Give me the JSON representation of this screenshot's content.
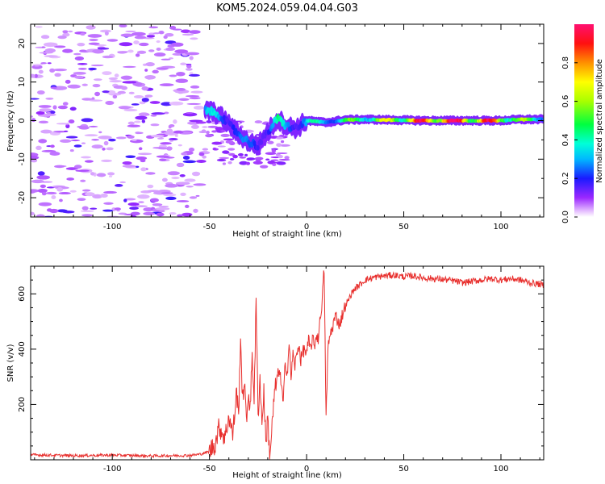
{
  "figure": {
    "title": "KOM5.2024.059.04.04.G03"
  },
  "chart_data": [
    {
      "type": "heatmap",
      "xlabel": "Height of straight line (km)",
      "ylabel": "Frequency (Hz)",
      "xlim": [
        -142,
        122
      ],
      "ylim": [
        -25,
        25
      ],
      "x_ticks": [
        -100,
        -50,
        0,
        50,
        100
      ],
      "y_ticks": [
        -20,
        -10,
        0,
        10,
        20
      ],
      "colorbar": {
        "label": "Normalized spectral amplitude",
        "range": [
          0,
          1
        ],
        "ticks": [
          "0.0",
          "0.2",
          "0.4",
          "0.6",
          "0.8"
        ],
        "colormap": "hsv-rainbow (white below threshold)"
      },
      "ridge": [
        {
          "x": -50,
          "f": 2.5,
          "amp": 0.3
        },
        {
          "x": -45,
          "f": 1.5,
          "amp": 0.35
        },
        {
          "x": -40,
          "f": -1.0,
          "amp": 0.28
        },
        {
          "x": -35,
          "f": -3.5,
          "amp": 0.25
        },
        {
          "x": -30,
          "f": -5.5,
          "amp": 0.22
        },
        {
          "x": -25,
          "f": -6.5,
          "amp": 0.25
        },
        {
          "x": -20,
          "f": -3.0,
          "amp": 0.25
        },
        {
          "x": -15,
          "f": 0.5,
          "amp": 0.4
        },
        {
          "x": -10,
          "f": -1.5,
          "amp": 0.3
        },
        {
          "x": -5,
          "f": -2.0,
          "amp": 0.25
        },
        {
          "x": 0,
          "f": 0.0,
          "amp": 0.4
        },
        {
          "x": 10,
          "f": -0.5,
          "amp": 0.35
        },
        {
          "x": 20,
          "f": 0.2,
          "amp": 0.45
        },
        {
          "x": 30,
          "f": 0.3,
          "amp": 0.55
        },
        {
          "x": 40,
          "f": 0.2,
          "amp": 0.6
        },
        {
          "x": 50,
          "f": 0.1,
          "amp": 0.75
        },
        {
          "x": 60,
          "f": 0.0,
          "amp": 0.85
        },
        {
          "x": 70,
          "f": 0.0,
          "amp": 0.95
        },
        {
          "x": 80,
          "f": 0.0,
          "amp": 0.9
        },
        {
          "x": 90,
          "f": 0.0,
          "amp": 0.85
        },
        {
          "x": 100,
          "f": 0.0,
          "amp": 0.8
        },
        {
          "x": 110,
          "f": 0.3,
          "amp": 0.55
        },
        {
          "x": 120,
          "f": 0.3,
          "amp": 0.45
        }
      ]
    },
    {
      "type": "line",
      "xlabel": "Height of straight line (km)",
      "ylabel": "SNR (v/v)",
      "xlim": [
        -142,
        122
      ],
      "ylim": [
        0,
        700
      ],
      "x_ticks": [
        -100,
        -50,
        0,
        50,
        100
      ],
      "y_ticks": [
        200,
        400,
        600
      ],
      "color": "#e8302e",
      "series": [
        {
          "points": [
            [
              -142,
              18
            ],
            [
              -120,
              15
            ],
            [
              -100,
              17
            ],
            [
              -80,
              14
            ],
            [
              -60,
              16
            ],
            [
              -55,
              20
            ],
            [
              -50,
              30
            ],
            [
              -47,
              60
            ],
            [
              -45,
              120
            ],
            [
              -42,
              80
            ],
            [
              -40,
              160
            ],
            [
              -38,
              90
            ],
            [
              -36,
              250
            ],
            [
              -35,
              150
            ],
            [
              -34,
              460
            ],
            [
              -33,
              200
            ],
            [
              -32,
              300
            ],
            [
              -31,
              120
            ],
            [
              -30,
              250
            ],
            [
              -29,
              180
            ],
            [
              -28,
              380
            ],
            [
              -27,
              230
            ],
            [
              -26,
              570
            ],
            [
              -25,
              160
            ],
            [
              -24,
              300
            ],
            [
              -23,
              130
            ],
            [
              -22,
              250
            ],
            [
              -21,
              60
            ],
            [
              -20,
              150
            ],
            [
              -19,
              20
            ],
            [
              -18,
              90
            ],
            [
              -17,
              200
            ],
            [
              -16,
              260
            ],
            [
              -15,
              300
            ],
            [
              -14,
              330
            ],
            [
              -12,
              200
            ],
            [
              -11,
              360
            ],
            [
              -10,
              310
            ],
            [
              -9,
              420
            ],
            [
              -8,
              300
            ],
            [
              -7,
              380
            ],
            [
              -6,
              340
            ],
            [
              -5,
              380
            ],
            [
              -4,
              420
            ],
            [
              -3,
              360
            ],
            [
              -2,
              390
            ],
            [
              -1,
              400
            ],
            [
              0,
              380
            ],
            [
              1,
              430
            ],
            [
              2,
              400
            ],
            [
              3,
              440
            ],
            [
              4,
              410
            ],
            [
              5,
              450
            ],
            [
              6,
              440
            ],
            [
              7,
              510
            ],
            [
              8,
              580
            ],
            [
              9,
              690
            ],
            [
              10,
              150
            ],
            [
              11,
              400
            ],
            [
              12,
              450
            ],
            [
              13,
              470
            ],
            [
              14,
              500
            ],
            [
              15,
              520
            ],
            [
              17,
              490
            ],
            [
              19,
              540
            ],
            [
              21,
              570
            ],
            [
              23,
              600
            ],
            [
              25,
              620
            ],
            [
              27,
              630
            ],
            [
              30,
              650
            ],
            [
              35,
              660
            ],
            [
              40,
              665
            ],
            [
              45,
              668
            ],
            [
              50,
              662
            ],
            [
              55,
              665
            ],
            [
              60,
              658
            ],
            [
              65,
              655
            ],
            [
              70,
              652
            ],
            [
              75,
              648
            ],
            [
              80,
              640
            ],
            [
              85,
              645
            ],
            [
              90,
              650
            ],
            [
              95,
              655
            ],
            [
              100,
              650
            ],
            [
              105,
              655
            ],
            [
              110,
              650
            ],
            [
              115,
              640
            ],
            [
              120,
              635
            ],
            [
              122,
              630
            ]
          ]
        }
      ]
    }
  ]
}
